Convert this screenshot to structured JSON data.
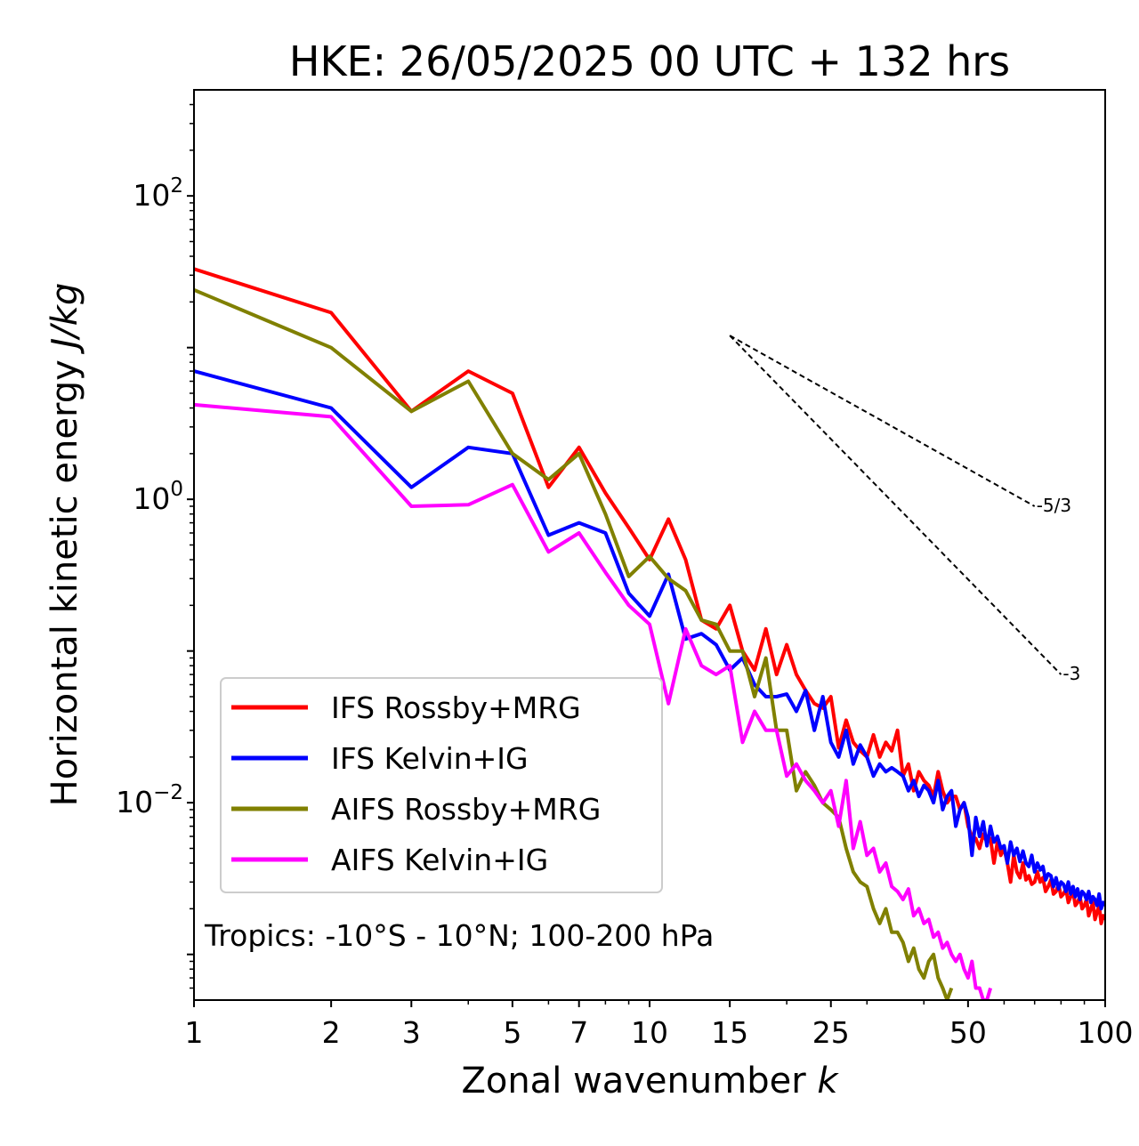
{
  "chart_data": {
    "type": "line",
    "title": "HKE: 26/05/2025 00 UTC + 132 hrs",
    "xlabel_main": "Zonal wavenumber ",
    "xlabel_italic": "k",
    "ylabel_main": "Horizontal kinetic energy ",
    "ylabel_italic": "J/kg",
    "x_scale": "log",
    "y_scale": "log",
    "xlim": [
      1,
      100
    ],
    "ylim": [
      0.0005,
      500
    ],
    "x_ticks": [
      1,
      2,
      3,
      5,
      7,
      10,
      15,
      25,
      50,
      100
    ],
    "x_tick_labels": [
      "1",
      "2",
      "3",
      "5",
      "7",
      "10",
      "15",
      "25",
      "50",
      "100"
    ],
    "y_ticks": [
      {
        "value": 100,
        "base": "10",
        "exp": "2"
      },
      {
        "value": 1,
        "base": "10",
        "exp": "0"
      },
      {
        "value": 0.01,
        "base": "10",
        "exp": "−2"
      }
    ],
    "grid": false,
    "legend_position": "lower-left",
    "annotation": "Tropics: -10°S - 10°N; 100-200 hPa",
    "reference_lines": [
      {
        "label": "-5/3",
        "slope": -1.667,
        "x_start": 15,
        "y_start": 12.0,
        "x_end": 70,
        "y_end": 0.9
      },
      {
        "label": "-3",
        "slope": -3,
        "x_start": 15,
        "y_start": 12.0,
        "x_end": 80,
        "y_end": 0.07
      }
    ],
    "series": [
      {
        "name": "IFS Rossby+MRG",
        "color": "#ff0000",
        "x": [
          1,
          2,
          3,
          4,
          5,
          6,
          7,
          8,
          9,
          10,
          11,
          12,
          13,
          14,
          15,
          16,
          17,
          18,
          19,
          20,
          21,
          22,
          23,
          24,
          25,
          26,
          27,
          28,
          29,
          30,
          31,
          32,
          33,
          34,
          35,
          36,
          37,
          38,
          39,
          40,
          41,
          42,
          43,
          44,
          45,
          46,
          47,
          48,
          49,
          50,
          51,
          52,
          53,
          54,
          55,
          56,
          57,
          58,
          59,
          60,
          61,
          62,
          63,
          64,
          65,
          66,
          67,
          68,
          69,
          70,
          71,
          72,
          73,
          74,
          75,
          76,
          77,
          78,
          79,
          80,
          81,
          82,
          83,
          84,
          85,
          86,
          87,
          88,
          89,
          90,
          91,
          92,
          93,
          94,
          95,
          96,
          97,
          98,
          99,
          100
        ],
        "y": [
          33,
          17,
          3.8,
          7.0,
          5.0,
          1.2,
          2.2,
          1.1,
          0.65,
          0.4,
          0.74,
          0.4,
          0.16,
          0.14,
          0.2,
          0.1,
          0.075,
          0.14,
          0.07,
          0.11,
          0.07,
          0.055,
          0.045,
          0.042,
          0.05,
          0.023,
          0.035,
          0.025,
          0.022,
          0.02,
          0.028,
          0.02,
          0.025,
          0.022,
          0.03,
          0.015,
          0.018,
          0.012,
          0.016,
          0.014,
          0.013,
          0.011,
          0.016,
          0.012,
          0.01,
          0.011,
          0.011,
          0.009,
          0.01,
          0.007,
          0.006,
          0.0058,
          0.005,
          0.0062,
          0.0055,
          0.0058,
          0.004,
          0.0055,
          0.0045,
          0.005,
          0.004,
          0.003,
          0.0045,
          0.0035,
          0.0032,
          0.004,
          0.0031,
          0.0033,
          0.0029,
          0.003,
          0.0035,
          0.003,
          0.0032,
          0.0026,
          0.0028,
          0.0031,
          0.0025,
          0.0026,
          0.0029,
          0.0024,
          0.0025,
          0.0027,
          0.0022,
          0.0024,
          0.0026,
          0.0021,
          0.0022,
          0.0024,
          0.002,
          0.0021,
          0.0023,
          0.0018,
          0.002,
          0.0022,
          0.0017,
          0.0019,
          0.0021,
          0.0016,
          0.0018,
          0.0017
        ]
      },
      {
        "name": "IFS Kelvin+IG",
        "color": "#0000ff",
        "x": [
          1,
          2,
          3,
          4,
          5,
          6,
          7,
          8,
          9,
          10,
          11,
          12,
          13,
          14,
          15,
          16,
          17,
          18,
          19,
          20,
          21,
          22,
          23,
          24,
          25,
          26,
          27,
          28,
          29,
          30,
          31,
          32,
          33,
          34,
          35,
          36,
          37,
          38,
          39,
          40,
          41,
          42,
          43,
          44,
          45,
          46,
          47,
          48,
          49,
          50,
          51,
          52,
          53,
          54,
          55,
          56,
          57,
          58,
          59,
          60,
          61,
          62,
          63,
          64,
          65,
          66,
          67,
          68,
          69,
          70,
          71,
          72,
          73,
          74,
          75,
          76,
          77,
          78,
          79,
          80,
          81,
          82,
          83,
          84,
          85,
          86,
          87,
          88,
          89,
          90,
          91,
          92,
          93,
          94,
          95,
          96,
          97,
          98,
          99,
          100
        ],
        "y": [
          7.0,
          4.0,
          1.2,
          2.2,
          2.0,
          0.58,
          0.7,
          0.6,
          0.24,
          0.17,
          0.32,
          0.12,
          0.13,
          0.11,
          0.075,
          0.09,
          0.06,
          0.05,
          0.05,
          0.052,
          0.04,
          0.055,
          0.03,
          0.05,
          0.025,
          0.02,
          0.03,
          0.018,
          0.024,
          0.02,
          0.015,
          0.018,
          0.016,
          0.017,
          0.016,
          0.015,
          0.012,
          0.014,
          0.011,
          0.013,
          0.012,
          0.01,
          0.014,
          0.009,
          0.011,
          0.012,
          0.007,
          0.009,
          0.01,
          0.008,
          0.0045,
          0.008,
          0.006,
          0.0075,
          0.0052,
          0.007,
          0.0055,
          0.006,
          0.005,
          0.0052,
          0.004,
          0.0055,
          0.0045,
          0.005,
          0.0041,
          0.0048,
          0.004,
          0.0038,
          0.0045,
          0.0035,
          0.004,
          0.0036,
          0.0038,
          0.0031,
          0.0034,
          0.0033,
          0.0028,
          0.0032,
          0.0027,
          0.003,
          0.0029,
          0.0026,
          0.003,
          0.0025,
          0.0028,
          0.0024,
          0.0027,
          0.0023,
          0.0026,
          0.0025,
          0.0023,
          0.0026,
          0.0022,
          0.0024,
          0.0023,
          0.0021,
          0.0025,
          0.002,
          0.0022,
          0.0021
        ]
      },
      {
        "name": "AIFS Rossby+MRG",
        "color": "#808000",
        "x": [
          1,
          2,
          3,
          4,
          5,
          6,
          7,
          8,
          9,
          10,
          11,
          12,
          13,
          14,
          15,
          16,
          17,
          18,
          19,
          20,
          21,
          22,
          23,
          24,
          25,
          26,
          27,
          28,
          29,
          30,
          31,
          32,
          33,
          34,
          35,
          36,
          37,
          38,
          39,
          40,
          41,
          42,
          43,
          44,
          45,
          46
        ],
        "y": [
          24,
          10,
          3.8,
          6.0,
          2.0,
          1.35,
          2.0,
          0.8,
          0.31,
          0.42,
          0.3,
          0.25,
          0.16,
          0.15,
          0.1,
          0.1,
          0.05,
          0.09,
          0.03,
          0.03,
          0.012,
          0.016,
          0.013,
          0.01,
          0.009,
          0.008,
          0.005,
          0.0035,
          0.003,
          0.0028,
          0.002,
          0.0016,
          0.002,
          0.0014,
          0.0014,
          0.0012,
          0.0009,
          0.0011,
          0.0008,
          0.0007,
          0.0009,
          0.001,
          0.0007,
          0.0006,
          0.0005,
          0.0006
        ]
      },
      {
        "name": "AIFS Kelvin+IG",
        "color": "#ff00ff",
        "x": [
          1,
          2,
          3,
          4,
          5,
          6,
          7,
          8,
          9,
          10,
          11,
          12,
          13,
          14,
          15,
          16,
          17,
          18,
          19,
          20,
          21,
          22,
          23,
          24,
          25,
          26,
          27,
          28,
          29,
          30,
          31,
          32,
          33,
          34,
          35,
          36,
          37,
          38,
          39,
          40,
          41,
          42,
          43,
          44,
          45,
          46,
          47,
          48,
          49,
          50,
          51,
          52,
          53,
          54,
          55,
          56
        ],
        "y": [
          4.2,
          3.5,
          0.9,
          0.92,
          1.25,
          0.45,
          0.6,
          0.33,
          0.2,
          0.15,
          0.045,
          0.14,
          0.08,
          0.07,
          0.08,
          0.025,
          0.04,
          0.03,
          0.03,
          0.015,
          0.018,
          0.014,
          0.012,
          0.01,
          0.012,
          0.007,
          0.014,
          0.005,
          0.0075,
          0.0045,
          0.005,
          0.0035,
          0.004,
          0.0028,
          0.0026,
          0.0023,
          0.0027,
          0.0018,
          0.002,
          0.0016,
          0.0017,
          0.0013,
          0.0014,
          0.0011,
          0.0012,
          0.001,
          0.0009,
          0.001,
          0.0008,
          0.0007,
          0.0009,
          0.0006,
          0.0006,
          0.0005,
          0.0005,
          0.0006
        ]
      }
    ]
  }
}
